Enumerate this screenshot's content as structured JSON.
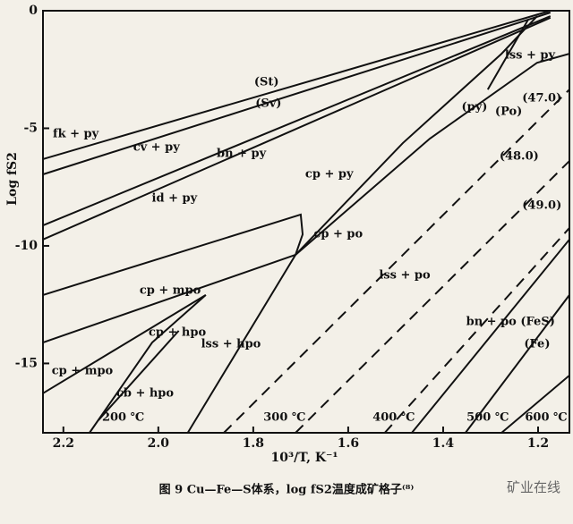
{
  "chart_data": {
    "type": "line",
    "xlabel": "10³/T, K⁻¹",
    "ylabel": "Log fS2",
    "caption": "图 9  Cu—Fe—S体系，log fS2温度成矿格子⁽⁸⁾",
    "watermark": "矿业在线",
    "xlim": [
      2.243,
      1.134
    ],
    "ylim": [
      -17.95,
      0
    ],
    "xticks": [
      2.2,
      {
        "value": 2,
        "label": "2.0"
      },
      1.8,
      1.6,
      1.4,
      1.2
    ],
    "yticks": [
      0,
      -5,
      -10,
      -15
    ],
    "color": "#111111",
    "lines": [
      {
        "x": [
          2.243,
          1.174
        ],
        "y": [
          -6.31,
          0
        ],
        "dashed": false
      },
      {
        "x": [
          2.243,
          1.174
        ],
        "y": [
          -6.96,
          -0.08
        ],
        "dashed": false
      },
      {
        "x": [
          2.243,
          1.174
        ],
        "y": [
          -9.13,
          -0.23
        ],
        "dashed": false
      },
      {
        "x": [
          2.243,
          1.174
        ],
        "y": [
          -9.73,
          -0.3
        ],
        "dashed": false
      },
      {
        "x": [
          2.243,
          1.7,
          1.696,
          1.711
        ],
        "y": [
          -12.09,
          -8.67,
          -9.51,
          -10.38
        ],
        "dashed": false
      },
      {
        "x": [
          2.243,
          1.711
        ],
        "y": [
          -14.11,
          -10.38
        ],
        "dashed": false
      },
      {
        "x": [
          2.243,
          1.9
        ],
        "y": [
          -16.27,
          -12.09
        ],
        "dashed": false
      },
      {
        "x": [
          1.938,
          1.711,
          1.485,
          1.277,
          1.202
        ],
        "y": [
          -17.95,
          -10.38,
          -5.63,
          -1.83,
          -0.23
        ],
        "dashed": false
      },
      {
        "x": [
          1.711,
          1.428,
          1.202,
          1.134
        ],
        "y": [
          -10.38,
          -5.44,
          -2.21,
          -1.83
        ],
        "dashed": false
      },
      {
        "x": [
          1.306,
          1.221
        ],
        "y": [
          -3.35,
          -0.38
        ],
        "dashed": false
      },
      {
        "x": [
          2.145,
          2.013,
          1.9
        ],
        "y": [
          -17.95,
          -14.11,
          -12.09
        ],
        "dashed": false
      },
      {
        "x": [
          2.126,
          1.957
        ],
        "y": [
          -17.41,
          -13.61
        ],
        "dashed": false
      },
      {
        "x": [
          1.862,
          1.134
        ],
        "y": [
          -17.95,
          -3.35
        ],
        "dashed": true
      },
      {
        "x": [
          1.711,
          1.134
        ],
        "y": [
          -17.95,
          -6.39
        ],
        "dashed": true
      },
      {
        "x": [
          1.523,
          1.134
        ],
        "y": [
          -17.95,
          -9.24
        ],
        "dashed": true
      },
      {
        "x": [
          1.466,
          1.134
        ],
        "y": [
          -17.95,
          -9.73
        ],
        "dashed": false
      },
      {
        "x": [
          1.353,
          1.134
        ],
        "y": [
          -17.95,
          -12.09
        ],
        "dashed": false
      },
      {
        "x": [
          1.277,
          1.134
        ],
        "y": [
          -17.95,
          -15.51
        ],
        "dashed": false
      }
    ],
    "annotations": [
      {
        "text": "(St)",
        "x": 1.772,
        "y": -3.04
      },
      {
        "text": "(Sv)",
        "x": 1.768,
        "y": -3.95
      },
      {
        "text": "fk + py",
        "x": 2.174,
        "y": -5.25
      },
      {
        "text": "cv + py",
        "x": 2.004,
        "y": -5.82
      },
      {
        "text": "bn + py",
        "x": 1.825,
        "y": -6.08
      },
      {
        "text": "cp + py",
        "x": 1.64,
        "y": -6.96
      },
      {
        "text": "id + py",
        "x": 1.966,
        "y": -7.98
      },
      {
        "text": "(py)",
        "x": 1.334,
        "y": -4.11
      },
      {
        "text": "(Po)",
        "x": 1.262,
        "y": -4.3
      },
      {
        "text": "lss + py",
        "x": 1.217,
        "y": -1.9
      },
      {
        "text": "(47.0)",
        "x": 1.192,
        "y": -3.73
      },
      {
        "text": "(48.0)",
        "x": 1.24,
        "y": -6.2
      },
      {
        "text": "(49.0)",
        "x": 1.192,
        "y": -8.29
      },
      {
        "text": "cp + po",
        "x": 1.621,
        "y": -9.51
      },
      {
        "text": "lss + po",
        "x": 1.481,
        "y": -11.25
      },
      {
        "text": "cp + mpo",
        "x": 1.975,
        "y": -11.9
      },
      {
        "text": "cp + hpo",
        "x": 1.96,
        "y": -13.69
      },
      {
        "text": "lss + hpo",
        "x": 1.847,
        "y": -14.18
      },
      {
        "text": "cp + mpo",
        "x": 2.16,
        "y": -15.32
      },
      {
        "text": "cb + hpo",
        "x": 2.028,
        "y": -16.27
      },
      {
        "text": "bn + po (FeS)",
        "x": 1.258,
        "y": -13.23
      },
      {
        "text": "(Fe)",
        "x": 1.202,
        "y": -14.18
      },
      {
        "text": "200 ℃",
        "x": 2.074,
        "y": -17.3
      },
      {
        "text": "300 ℃",
        "x": 1.734,
        "y": -17.3
      },
      {
        "text": "400 ℃",
        "x": 1.504,
        "y": -17.3
      },
      {
        "text": "500 ℃",
        "x": 1.306,
        "y": -17.3
      },
      {
        "text": "600 ℃",
        "x": 1.183,
        "y": -17.3
      }
    ]
  }
}
